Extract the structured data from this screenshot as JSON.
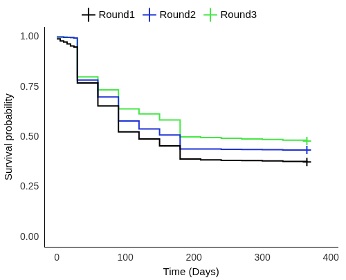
{
  "chart_data": {
    "type": "line",
    "x_label": "Time (Days)",
    "y_label": "Survival probability",
    "x": [
      0,
      5,
      10,
      15,
      20,
      25,
      30,
      60,
      90,
      120,
      150,
      180,
      210,
      240,
      270,
      300,
      330,
      365
    ],
    "series": [
      {
        "name": "Round1",
        "color": "#000000",
        "marker": "cross",
        "values": [
          0.99,
          0.98,
          0.975,
          0.965,
          0.955,
          0.95,
          0.77,
          0.655,
          0.525,
          0.49,
          0.455,
          0.39,
          0.385,
          0.383,
          0.382,
          0.38,
          0.378,
          0.375
        ]
      },
      {
        "name": "Round2",
        "color": "#1f33d6",
        "marker": "cross",
        "values": [
          1,
          1,
          0.998,
          0.998,
          0.997,
          0.995,
          0.785,
          0.7,
          0.58,
          0.54,
          0.51,
          0.44,
          0.44,
          0.438,
          0.437,
          0.436,
          0.435,
          0.435
        ]
      },
      {
        "name": "Round3",
        "color": "#44e844",
        "marker": "cross",
        "values": [
          1,
          1,
          1,
          0.998,
          0.997,
          0.995,
          0.8,
          0.735,
          0.64,
          0.615,
          0.585,
          0.5,
          0.497,
          0.493,
          0.49,
          0.487,
          0.484,
          0.48
        ]
      }
    ],
    "xlim": [
      -18,
      410
    ],
    "xticks": [
      0,
      100,
      200,
      300,
      400
    ],
    "ylim": [
      -0.05,
      1.05
    ],
    "yticks": [
      {
        "value": 0,
        "label": "0.00"
      },
      0.25,
      {
        "value": 0.5,
        "label": "0.50"
      },
      0.75,
      {
        "value": 1,
        "label": "1.00"
      }
    ],
    "grid": false,
    "legend": "top",
    "line_style": "solid"
  }
}
